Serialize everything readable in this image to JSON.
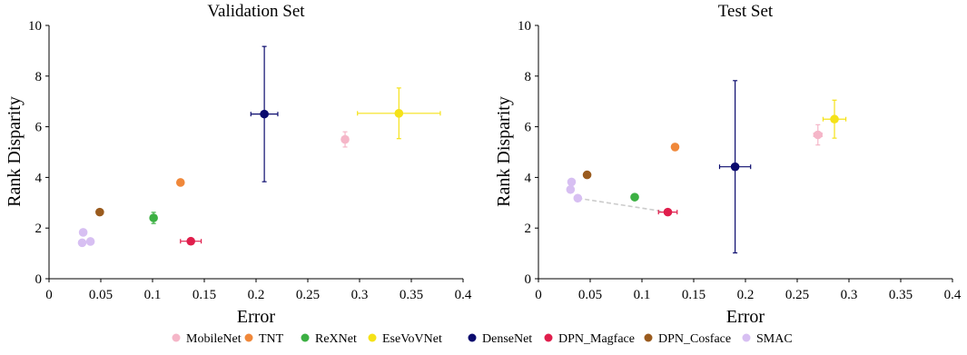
{
  "legend": [
    {
      "name": "MobileNet",
      "color": "#f5b6c8"
    },
    {
      "name": "TNT",
      "color": "#f0883a"
    },
    {
      "name": "ReXNet",
      "color": "#3cb043"
    },
    {
      "name": "EseVoVNet",
      "color": "#f5e218"
    },
    {
      "name": "DenseNet",
      "color": "#0b0b6e"
    },
    {
      "name": "DPN_Magface",
      "color": "#e01e4c"
    },
    {
      "name": "DPN_Cosface",
      "color": "#9a5b1e"
    },
    {
      "name": "SMAC",
      "color": "#d7bff2"
    }
  ],
  "chart_data": [
    {
      "type": "scatter",
      "title": "Validation Set",
      "xlabel": "Error",
      "ylabel": "Rank Disparity",
      "xlim": [
        0,
        0.4
      ],
      "ylim": [
        0,
        10
      ],
      "xticks": [
        "0",
        "0.05",
        "0.1",
        "0.15",
        "0.2",
        "0.25",
        "0.3",
        "0.35",
        "0.4"
      ],
      "yticks": [
        "0",
        "2",
        "4",
        "6",
        "8",
        "10"
      ],
      "grid": false,
      "points": [
        {
          "series": "MobileNet",
          "x": 0.286,
          "y": 5.5,
          "xerr": 0.002,
          "yerr": 0.3
        },
        {
          "series": "TNT",
          "x": 0.127,
          "y": 3.8,
          "xerr": 0.002,
          "yerr": 0.08
        },
        {
          "series": "ReXNet",
          "x": 0.101,
          "y": 2.4,
          "xerr": 0.002,
          "yerr": 0.22
        },
        {
          "series": "EseVoVNet",
          "x": 0.338,
          "y": 6.53,
          "xerr": 0.04,
          "yerr": 1.0
        },
        {
          "series": "DenseNet",
          "x": 0.208,
          "y": 6.5,
          "xerr": 0.013,
          "yerr": 2.67
        },
        {
          "series": "DPN_Magface",
          "x": 0.137,
          "y": 1.48,
          "xerr": 0.01,
          "yerr": 0.05
        },
        {
          "series": "DPN_Cosface",
          "x": 0.049,
          "y": 2.63,
          "xerr": 0,
          "yerr": 0
        },
        {
          "series": "SMAC",
          "x": 0.033,
          "y": 1.83,
          "xerr": 0,
          "yerr": 0
        },
        {
          "series": "SMAC",
          "x": 0.04,
          "y": 1.47,
          "xerr": 0,
          "yerr": 0
        },
        {
          "series": "SMAC",
          "x": 0.032,
          "y": 1.42,
          "xerr": 0,
          "yerr": 0
        }
      ],
      "connectors": []
    },
    {
      "type": "scatter",
      "title": "Test Set",
      "xlabel": "Error",
      "ylabel": "Rank Disparity",
      "xlim": [
        0,
        0.4
      ],
      "ylim": [
        0,
        10
      ],
      "xticks": [
        "0",
        "0.05",
        "0.1",
        "0.15",
        "0.2",
        "0.25",
        "0.3",
        "0.35",
        "0.4"
      ],
      "yticks": [
        "0",
        "2",
        "4",
        "6",
        "8",
        "10"
      ],
      "grid": false,
      "points": [
        {
          "series": "MobileNet",
          "x": 0.27,
          "y": 5.68,
          "xerr": 0.004,
          "yerr": 0.4
        },
        {
          "series": "TNT",
          "x": 0.132,
          "y": 5.2,
          "xerr": 0,
          "yerr": 0
        },
        {
          "series": "ReXNet",
          "x": 0.093,
          "y": 3.22,
          "xerr": 0,
          "yerr": 0
        },
        {
          "series": "EseVoVNet",
          "x": 0.286,
          "y": 6.3,
          "xerr": 0.011,
          "yerr": 0.75
        },
        {
          "series": "DenseNet",
          "x": 0.19,
          "y": 4.42,
          "xerr": 0.015,
          "yerr": 3.4
        },
        {
          "series": "DPN_Magface",
          "x": 0.125,
          "y": 2.63,
          "xerr": 0.009,
          "yerr": 0.05
        },
        {
          "series": "DPN_Cosface",
          "x": 0.047,
          "y": 4.1,
          "xerr": 0,
          "yerr": 0
        },
        {
          "series": "SMAC",
          "x": 0.032,
          "y": 3.82,
          "xerr": 0,
          "yerr": 0
        },
        {
          "series": "SMAC",
          "x": 0.031,
          "y": 3.52,
          "xerr": 0,
          "yerr": 0
        },
        {
          "series": "SMAC",
          "x": 0.038,
          "y": 3.18,
          "xerr": 0,
          "yerr": 0
        }
      ],
      "connectors": [
        {
          "from": [
            0.038,
            3.18
          ],
          "to": [
            0.125,
            2.63
          ],
          "color": "#cccccc",
          "style": "dashed"
        }
      ]
    }
  ]
}
